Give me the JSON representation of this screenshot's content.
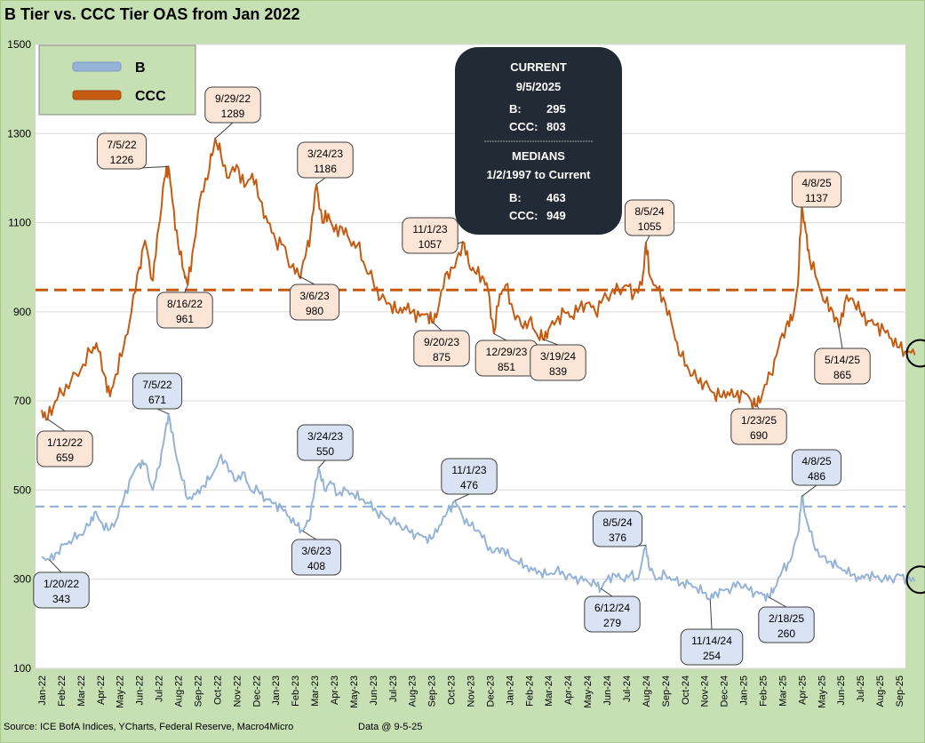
{
  "chart_data": {
    "type": "line",
    "title": "B Tier vs. CCC Tier OAS from Jan 2022",
    "ylim": [
      100,
      1500
    ],
    "yticks": [
      100,
      300,
      500,
      700,
      900,
      1100,
      1300,
      1500
    ],
    "xticks": [
      "Jan-22",
      "Feb-22",
      "Mar-22",
      "Apr-22",
      "May-22",
      "Jun-22",
      "Jul-22",
      "Aug-22",
      "Sep-22",
      "Oct-22",
      "Nov-22",
      "Dec-22",
      "Jan-23",
      "Feb-23",
      "Mar-23",
      "Apr-23",
      "May-23",
      "Jun-23",
      "Jul-23",
      "Aug-23",
      "Sep-23",
      "Oct-23",
      "Nov-23",
      "Dec-23",
      "Jan-24",
      "Feb-24",
      "Mar-24",
      "Apr-24",
      "May-24",
      "Jun-24",
      "Jul-24",
      "Aug-24",
      "Sep-24",
      "Oct-24",
      "Nov-24",
      "Dec-24",
      "Jan-25",
      "Feb-25",
      "Mar-25",
      "Apr-25",
      "May-25",
      "Jun-25",
      "Jul-25",
      "Aug-25",
      "Sep-25"
    ],
    "legend": [
      {
        "name": "B",
        "color": "#95b3d7"
      },
      {
        "name": "CCC",
        "color": "#c55a11"
      }
    ],
    "series": [
      {
        "name": "CCC",
        "color": "#c55a11",
        "median": 949,
        "points": [
          [
            0,
            680
          ],
          [
            0.3,
            659
          ],
          [
            0.7,
            700
          ],
          [
            1.0,
            720
          ],
          [
            1.5,
            745
          ],
          [
            2.0,
            770
          ],
          [
            2.5,
            810
          ],
          [
            2.8,
            830
          ],
          [
            3.2,
            760
          ],
          [
            3.5,
            710
          ],
          [
            3.8,
            760
          ],
          [
            4.2,
            820
          ],
          [
            4.6,
            900
          ],
          [
            5.0,
            1000
          ],
          [
            5.3,
            1060
          ],
          [
            5.7,
            970
          ],
          [
            6.0,
            1090
          ],
          [
            6.3,
            1200
          ],
          [
            6.5,
            1226
          ],
          [
            6.7,
            1150
          ],
          [
            7.0,
            1050
          ],
          [
            7.3,
            990
          ],
          [
            7.5,
            961
          ],
          [
            7.8,
            1050
          ],
          [
            8.2,
            1170
          ],
          [
            8.6,
            1220
          ],
          [
            8.9,
            1289
          ],
          [
            9.2,
            1250
          ],
          [
            9.6,
            1200
          ],
          [
            10.0,
            1230
          ],
          [
            10.4,
            1180
          ],
          [
            10.8,
            1210
          ],
          [
            11.2,
            1150
          ],
          [
            11.6,
            1100
          ],
          [
            12.0,
            1060
          ],
          [
            12.4,
            1050
          ],
          [
            12.8,
            1000
          ],
          [
            13.2,
            980
          ],
          [
            13.5,
            1020
          ],
          [
            13.8,
            1080
          ],
          [
            14.1,
            1186
          ],
          [
            14.4,
            1100
          ],
          [
            14.7,
            1120
          ],
          [
            15.0,
            1080
          ],
          [
            15.4,
            1090
          ],
          [
            15.8,
            1060
          ],
          [
            16.2,
            1050
          ],
          [
            16.6,
            1000
          ],
          [
            17.0,
            970
          ],
          [
            17.4,
            930
          ],
          [
            17.8,
            920
          ],
          [
            18.2,
            900
          ],
          [
            18.6,
            910
          ],
          [
            19.0,
            900
          ],
          [
            19.4,
            890
          ],
          [
            19.8,
            895
          ],
          [
            20.1,
            875
          ],
          [
            20.4,
            920
          ],
          [
            20.8,
            990
          ],
          [
            21.2,
            1000
          ],
          [
            21.6,
            1057
          ],
          [
            21.9,
            1010
          ],
          [
            22.2,
            990
          ],
          [
            22.6,
            980
          ],
          [
            22.9,
            950
          ],
          [
            23.2,
            851
          ],
          [
            23.5,
            940
          ],
          [
            23.8,
            960
          ],
          [
            24.2,
            900
          ],
          [
            24.6,
            870
          ],
          [
            25.0,
            880
          ],
          [
            25.4,
            850
          ],
          [
            25.7,
            839
          ],
          [
            26.0,
            860
          ],
          [
            26.4,
            880
          ],
          [
            26.8,
            900
          ],
          [
            27.2,
            890
          ],
          [
            27.6,
            910
          ],
          [
            28.0,
            920
          ],
          [
            28.4,
            900
          ],
          [
            28.8,
            930
          ],
          [
            29.2,
            940
          ],
          [
            29.6,
            950
          ],
          [
            30.0,
            960
          ],
          [
            30.4,
            940
          ],
          [
            30.8,
            960
          ],
          [
            31.0,
            1055
          ],
          [
            31.2,
            980
          ],
          [
            31.6,
            950
          ],
          [
            32.0,
            920
          ],
          [
            32.4,
            860
          ],
          [
            32.8,
            800
          ],
          [
            33.2,
            770
          ],
          [
            33.6,
            750
          ],
          [
            34.0,
            740
          ],
          [
            34.4,
            720
          ],
          [
            34.8,
            710
          ],
          [
            35.2,
            720
          ],
          [
            35.6,
            710
          ],
          [
            36.0,
            720
          ],
          [
            36.4,
            700
          ],
          [
            36.7,
            690
          ],
          [
            37.0,
            720
          ],
          [
            37.4,
            760
          ],
          [
            37.8,
            820
          ],
          [
            38.2,
            870
          ],
          [
            38.5,
            880
          ],
          [
            38.8,
            960
          ],
          [
            39.0,
            1137
          ],
          [
            39.2,
            1080
          ],
          [
            39.4,
            1020
          ],
          [
            39.8,
            970
          ],
          [
            40.2,
            920
          ],
          [
            40.6,
            900
          ],
          [
            40.9,
            865
          ],
          [
            41.2,
            920
          ],
          [
            41.6,
            930
          ],
          [
            42.0,
            900
          ],
          [
            42.4,
            880
          ],
          [
            42.8,
            870
          ],
          [
            43.2,
            860
          ],
          [
            43.6,
            840
          ],
          [
            44.0,
            820
          ],
          [
            44.4,
            810
          ],
          [
            44.8,
            803
          ]
        ]
      },
      {
        "name": "B",
        "color": "#95b3d7",
        "median": 463,
        "points": [
          [
            0,
            350
          ],
          [
            0.4,
            343
          ],
          [
            0.8,
            360
          ],
          [
            1.2,
            380
          ],
          [
            1.6,
            390
          ],
          [
            2.0,
            400
          ],
          [
            2.4,
            420
          ],
          [
            2.7,
            450
          ],
          [
            3.0,
            430
          ],
          [
            3.4,
            410
          ],
          [
            3.8,
            430
          ],
          [
            4.2,
            480
          ],
          [
            4.6,
            530
          ],
          [
            5.0,
            560
          ],
          [
            5.3,
            560
          ],
          [
            5.7,
            500
          ],
          [
            6.0,
            550
          ],
          [
            6.3,
            620
          ],
          [
            6.5,
            671
          ],
          [
            6.8,
            600
          ],
          [
            7.1,
            540
          ],
          [
            7.5,
            480
          ],
          [
            7.9,
            490
          ],
          [
            8.3,
            510
          ],
          [
            8.7,
            530
          ],
          [
            9.1,
            570
          ],
          [
            9.5,
            560
          ],
          [
            9.9,
            520
          ],
          [
            10.3,
            540
          ],
          [
            10.7,
            500
          ],
          [
            11.1,
            500
          ],
          [
            11.5,
            480
          ],
          [
            11.9,
            470
          ],
          [
            12.3,
            460
          ],
          [
            12.7,
            440
          ],
          [
            13.1,
            420
          ],
          [
            13.4,
            408
          ],
          [
            13.7,
            430
          ],
          [
            14.0,
            500
          ],
          [
            14.2,
            550
          ],
          [
            14.5,
            500
          ],
          [
            14.8,
            520
          ],
          [
            15.2,
            490
          ],
          [
            15.6,
            500
          ],
          [
            16.0,
            490
          ],
          [
            16.4,
            480
          ],
          [
            16.8,
            470
          ],
          [
            17.2,
            450
          ],
          [
            17.6,
            440
          ],
          [
            18.0,
            430
          ],
          [
            18.4,
            420
          ],
          [
            18.8,
            410
          ],
          [
            19.2,
            400
          ],
          [
            19.6,
            395
          ],
          [
            20.0,
            390
          ],
          [
            20.4,
            420
          ],
          [
            20.8,
            450
          ],
          [
            21.2,
            476
          ],
          [
            21.6,
            440
          ],
          [
            22.0,
            420
          ],
          [
            22.4,
            410
          ],
          [
            22.8,
            380
          ],
          [
            23.2,
            360
          ],
          [
            23.6,
            370
          ],
          [
            24.0,
            350
          ],
          [
            24.4,
            340
          ],
          [
            24.8,
            330
          ],
          [
            25.2,
            320
          ],
          [
            25.6,
            315
          ],
          [
            26.0,
            310
          ],
          [
            26.4,
            320
          ],
          [
            26.8,
            310
          ],
          [
            27.2,
            305
          ],
          [
            27.6,
            300
          ],
          [
            28.0,
            295
          ],
          [
            28.4,
            290
          ],
          [
            28.7,
            279
          ],
          [
            29.0,
            300
          ],
          [
            29.4,
            310
          ],
          [
            29.8,
            300
          ],
          [
            30.2,
            310
          ],
          [
            30.6,
            300
          ],
          [
            31.0,
            376
          ],
          [
            31.2,
            320
          ],
          [
            31.6,
            300
          ],
          [
            32.0,
            310
          ],
          [
            32.4,
            300
          ],
          [
            32.8,
            290
          ],
          [
            33.2,
            290
          ],
          [
            33.6,
            280
          ],
          [
            34.0,
            270
          ],
          [
            34.3,
            254
          ],
          [
            34.6,
            270
          ],
          [
            35.0,
            275
          ],
          [
            35.4,
            280
          ],
          [
            35.8,
            290
          ],
          [
            36.2,
            280
          ],
          [
            36.6,
            270
          ],
          [
            37.0,
            265
          ],
          [
            37.3,
            260
          ],
          [
            37.6,
            280
          ],
          [
            38.0,
            320
          ],
          [
            38.4,
            340
          ],
          [
            38.8,
            400
          ],
          [
            39.0,
            486
          ],
          [
            39.2,
            440
          ],
          [
            39.6,
            380
          ],
          [
            40.0,
            350
          ],
          [
            40.4,
            340
          ],
          [
            40.8,
            330
          ],
          [
            41.2,
            320
          ],
          [
            41.6,
            310
          ],
          [
            42.0,
            300
          ],
          [
            42.4,
            310
          ],
          [
            42.8,
            305
          ],
          [
            43.2,
            300
          ],
          [
            43.6,
            300
          ],
          [
            44.0,
            310
          ],
          [
            44.4,
            300
          ],
          [
            44.8,
            295
          ]
        ]
      }
    ],
    "callouts": [
      {
        "series": "CCC",
        "date": "1/12/22",
        "value": "659",
        "xi": 0.3,
        "yv": 659
      },
      {
        "series": "CCC",
        "date": "7/5/22",
        "value": "1226",
        "xi": 6.5,
        "yv": 1226
      },
      {
        "series": "CCC",
        "date": "8/16/22",
        "value": "961",
        "xi": 7.5,
        "yv": 961
      },
      {
        "series": "CCC",
        "date": "9/29/22",
        "value": "1289",
        "xi": 8.9,
        "yv": 1289
      },
      {
        "series": "CCC",
        "date": "3/6/23",
        "value": "980",
        "xi": 13.2,
        "yv": 980
      },
      {
        "series": "CCC",
        "date": "3/24/23",
        "value": "1186",
        "xi": 14.1,
        "yv": 1186
      },
      {
        "series": "CCC",
        "date": "9/20/23",
        "value": "875",
        "xi": 20.1,
        "yv": 875
      },
      {
        "series": "CCC",
        "date": "11/1/23",
        "value": "1057",
        "xi": 21.6,
        "yv": 1057
      },
      {
        "series": "CCC",
        "date": "12/29/23",
        "value": "851",
        "xi": 23.2,
        "yv": 851
      },
      {
        "series": "CCC",
        "date": "3/19/24",
        "value": "839",
        "xi": 25.7,
        "yv": 839
      },
      {
        "series": "CCC",
        "date": "8/5/24",
        "value": "1055",
        "xi": 31.0,
        "yv": 1055
      },
      {
        "series": "CCC",
        "date": "1/23/25",
        "value": "690",
        "xi": 36.7,
        "yv": 690
      },
      {
        "series": "CCC",
        "date": "4/8/25",
        "value": "1137",
        "xi": 39.0,
        "yv": 1137
      },
      {
        "series": "CCC",
        "date": "5/14/25",
        "value": "865",
        "xi": 40.9,
        "yv": 865
      },
      {
        "series": "B",
        "date": "1/20/22",
        "value": "343",
        "xi": 0.4,
        "yv": 343
      },
      {
        "series": "B",
        "date": "7/5/22",
        "value": "671",
        "xi": 6.5,
        "yv": 671
      },
      {
        "series": "B",
        "date": "3/6/23",
        "value": "408",
        "xi": 13.4,
        "yv": 408
      },
      {
        "series": "B",
        "date": "3/24/23",
        "value": "550",
        "xi": 14.2,
        "yv": 550
      },
      {
        "series": "B",
        "date": "11/1/23",
        "value": "476",
        "xi": 21.2,
        "yv": 476
      },
      {
        "series": "B",
        "date": "6/12/24",
        "value": "279",
        "xi": 28.7,
        "yv": 279
      },
      {
        "series": "B",
        "date": "8/5/24",
        "value": "376",
        "xi": 31.0,
        "yv": 376
      },
      {
        "series": "B",
        "date": "11/14/24",
        "value": "254",
        "xi": 34.3,
        "yv": 254
      },
      {
        "series": "B",
        "date": "2/18/25",
        "value": "260",
        "xi": 37.3,
        "yv": 260
      },
      {
        "series": "B",
        "date": "4/8/25",
        "value": "486",
        "xi": 39.0,
        "yv": 486
      }
    ],
    "info_box": {
      "current_title": "CURRENT",
      "current_date": "9/5/2025",
      "current_b_label": "B:",
      "current_b_value": "295",
      "current_ccc_label": "CCC:",
      "current_ccc_value": "803",
      "medians_title": "MEDIANS",
      "medians_range": "1/2/1997 to Current",
      "median_b_label": "B:",
      "median_b_value": "463",
      "median_ccc_label": "CCC:",
      "median_ccc_value": "949"
    },
    "source": "Source: ICE BofA Indices, YCharts, Federal Reserve, Macro4Micro",
    "data_date": "Data @ 9-5-25"
  },
  "colors": {
    "frame_bg": "#c6e0b4",
    "ccc_callout_bg": "#fbe5d6",
    "b_callout_bg": "#dae3f3",
    "info_bg": "#222a35"
  }
}
